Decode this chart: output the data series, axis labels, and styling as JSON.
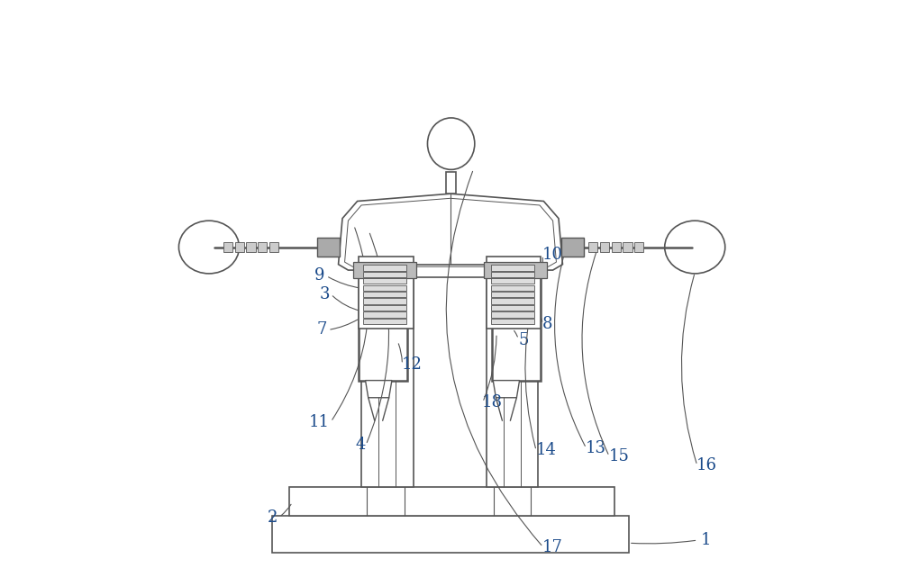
{
  "bg_color": "#ffffff",
  "line_color": "#555555",
  "label_color": "#1a4a8a",
  "fig_width": 10.0,
  "fig_height": 6.41,
  "dpi": 100
}
